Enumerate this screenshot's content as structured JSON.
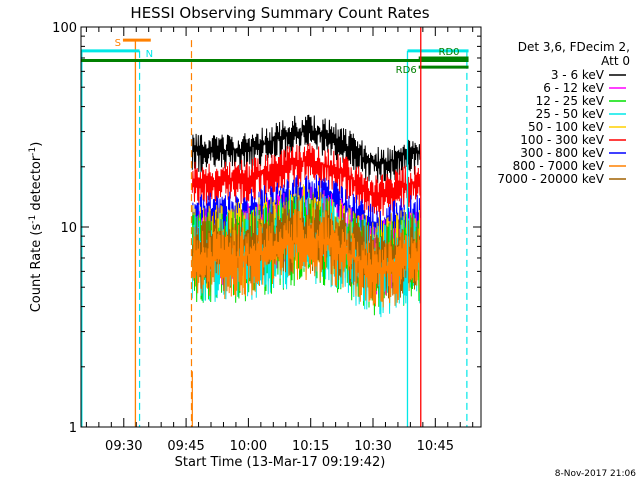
{
  "chart_data": {
    "type": "line",
    "title": "HESSI Observing Summary Count Rates",
    "xlabel": "Start Time (13-Mar-17 09:19:42)",
    "ylabel_main": "Count Rate (s",
    "ylabel_sup1": "-1",
    "ylabel_mid": " detector",
    "ylabel_sup2": "-1",
    "ylabel_end": ")",
    "y_scale": "log",
    "ylim": [
      1,
      100
    ],
    "y_ticks": [
      {
        "value": 1,
        "label": "1"
      },
      {
        "value": 10,
        "label": "10"
      },
      {
        "value": 100,
        "label": "100"
      }
    ],
    "x_range_minutes": [
      "09:19:42",
      "10:56:00"
    ],
    "x_ticks": [
      {
        "label": "09:30",
        "minutes": 570
      },
      {
        "label": "09:45",
        "minutes": 585
      },
      {
        "label": "10:00",
        "minutes": 600
      },
      {
        "label": "10:15",
        "minutes": 615
      },
      {
        "label": "10:30",
        "minutes": 630
      },
      {
        "label": "10:45",
        "minutes": 645
      }
    ],
    "legend_header": [
      "Det 3,6, FDecim 2,",
      "Att 0"
    ],
    "legend_position": "right",
    "series": [
      {
        "name": "3 - 6 keV",
        "color": "#000000",
        "level": 24,
        "amp": 1.22
      },
      {
        "name": "6 - 12 keV",
        "color": "#ff00ff",
        "level": 8.5,
        "amp": 1.5
      },
      {
        "name": "12 - 25 keV",
        "color": "#00e000",
        "level": 7.5,
        "amp": 1.6
      },
      {
        "name": "25 - 50 keV",
        "color": "#00e8e8",
        "level": 7.5,
        "amp": 1.6
      },
      {
        "name": "50 - 100 keV",
        "color": "#ffd000",
        "level": 8.5,
        "amp": 1.55
      },
      {
        "name": "100 - 300 keV",
        "color": "#ff0000",
        "level": 17,
        "amp": 1.25
      },
      {
        "name": "300 - 800 keV",
        "color": "#0000ff",
        "level": 11.5,
        "amp": 1.3
      },
      {
        "name": "800 - 7000 keV",
        "color": "#ff8000",
        "level": 7,
        "amp": 1.45
      },
      {
        "name": "7000 - 20000 keV",
        "color": "#a06000",
        "level": 8,
        "amp": 1.5
      }
    ],
    "data_window_minutes": [
      586.5,
      641.3
    ],
    "markers": [
      {
        "label": "S",
        "color": "#ff8000",
        "start_min": 569.8,
        "end_min": 576.5,
        "value": 86,
        "label_side": "left",
        "vline_start_min": 572.8,
        "vline_end_min": 586.3,
        "start_style": "solid",
        "end_style": "dashed"
      },
      {
        "label": "N",
        "color": "#00e8e8",
        "start_min": 559.7,
        "end_min": 573.8,
        "value": 76,
        "label_side": "right",
        "vline_start_min": 559.9,
        "vline_end_min": 573.8,
        "start_style": "solid",
        "end_style": "dashed"
      },
      {
        "label": "N2",
        "color": "#00e8e8",
        "start_min": 638.3,
        "end_min": 653.0,
        "value": 76,
        "label_side": "none",
        "vline_start_min": 638.3,
        "vline_end_min": 652.6,
        "start_style": "solid",
        "end_style": "dashed"
      },
      {
        "label": "RD6",
        "color": "#008000",
        "start_min": 559.7,
        "end_min": 653.0,
        "value": 68,
        "label_side": "none"
      },
      {
        "label": "RD6",
        "color": "#008000",
        "start_min": 641.0,
        "end_min": 653.0,
        "value": 63,
        "label_side": "left"
      },
      {
        "label": "RD0",
        "color": "#008000",
        "start_min": 641.0,
        "end_min": 653.0,
        "value": 70,
        "label_side": "right-above"
      },
      {
        "label": "red-end",
        "color": "#ff0000",
        "start_min": 641.5,
        "end_min": 641.5,
        "value": null,
        "label_side": "none",
        "vline_start_min": 641.5
      }
    ],
    "timestamp": "8-Nov-2017 21:06"
  }
}
